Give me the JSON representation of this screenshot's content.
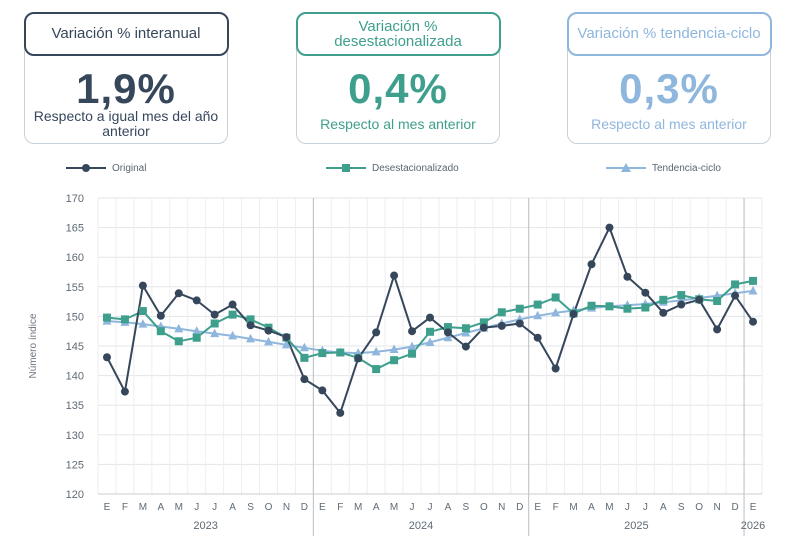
{
  "cards": [
    {
      "title": "Variación % interanual",
      "value": "1,9%",
      "note": "Respecto a igual mes del año anterior",
      "color": "#36475b"
    },
    {
      "title": "Variación % desestacionalizada",
      "value": "0,4%",
      "note": "Respecto al mes anterior",
      "color": "#3e9f8d"
    },
    {
      "title": "Variación % tendencia-ciclo",
      "value": "0,3%",
      "note": "Respecto al mes anterior",
      "color": "#8fb6dd"
    }
  ],
  "legend": [
    {
      "label": "Original",
      "marker": "circle",
      "color": "#36475b"
    },
    {
      "label": "Desestacionalizado",
      "marker": "square",
      "color": "#3e9f8d"
    },
    {
      "label": "Tendencia-ciclo",
      "marker": "triangle",
      "color": "#8fb6dd"
    }
  ],
  "chart_data": {
    "type": "line",
    "ylabel": "Número índice",
    "ylim": [
      120,
      170
    ],
    "yticks": [
      120,
      125,
      130,
      135,
      140,
      145,
      150,
      155,
      160,
      165,
      170
    ],
    "months": [
      "E",
      "F",
      "M",
      "A",
      "M",
      "J",
      "J",
      "A",
      "S",
      "O",
      "N",
      "D",
      "E",
      "F",
      "M",
      "A",
      "M",
      "J",
      "J",
      "A",
      "S",
      "O",
      "N",
      "D",
      "E",
      "F",
      "M",
      "A",
      "M",
      "J",
      "J",
      "A",
      "S",
      "O",
      "N",
      "D",
      "E"
    ],
    "years": [
      {
        "label": "2023",
        "start": 0,
        "end": 11
      },
      {
        "label": "2024",
        "start": 12,
        "end": 23
      },
      {
        "label": "2025",
        "start": 24,
        "end": 35
      },
      {
        "label": "2026",
        "start": 36,
        "end": 36
      }
    ],
    "grid": true,
    "legend_position": "top",
    "series": [
      {
        "name": "Original",
        "marker": "circle",
        "color": "#36475b",
        "values": [
          143.1,
          137.3,
          155.2,
          150.1,
          153.9,
          152.7,
          150.3,
          152.0,
          148.5,
          147.6,
          146.5,
          139.4,
          137.5,
          133.7,
          142.9,
          147.3,
          156.9,
          147.5,
          149.8,
          147.3,
          144.9,
          148.1,
          148.4,
          148.8,
          146.4,
          141.2,
          150.4,
          158.8,
          165.0,
          156.7,
          154.0,
          150.6,
          152.0,
          152.8,
          147.8,
          153.5,
          149.1
        ]
      },
      {
        "name": "Desestacionalizado",
        "marker": "square",
        "color": "#3e9f8d",
        "values": [
          149.8,
          149.5,
          150.9,
          147.5,
          145.8,
          146.4,
          148.8,
          150.3,
          149.5,
          148.1,
          146.4,
          143.0,
          143.8,
          143.9,
          143.0,
          141.1,
          142.6,
          143.7,
          147.4,
          148.2,
          148.0,
          149.0,
          150.7,
          151.3,
          152.0,
          153.2,
          150.5,
          151.8,
          151.7,
          151.3,
          151.5,
          152.8,
          153.6,
          152.9,
          152.6,
          155.4,
          156.0
        ]
      },
      {
        "name": "Tendencia-ciclo",
        "marker": "triangle",
        "color": "#8fb6dd",
        "values": [
          149.2,
          149.0,
          148.7,
          148.3,
          147.9,
          147.5,
          147.1,
          146.7,
          146.2,
          145.7,
          145.2,
          144.7,
          144.2,
          143.9,
          143.8,
          144.0,
          144.4,
          144.9,
          145.6,
          146.4,
          147.2,
          148.0,
          148.8,
          149.5,
          150.1,
          150.6,
          151.0,
          151.4,
          151.7,
          151.9,
          152.1,
          152.4,
          152.7,
          153.1,
          153.5,
          153.9,
          154.3
        ]
      }
    ]
  }
}
